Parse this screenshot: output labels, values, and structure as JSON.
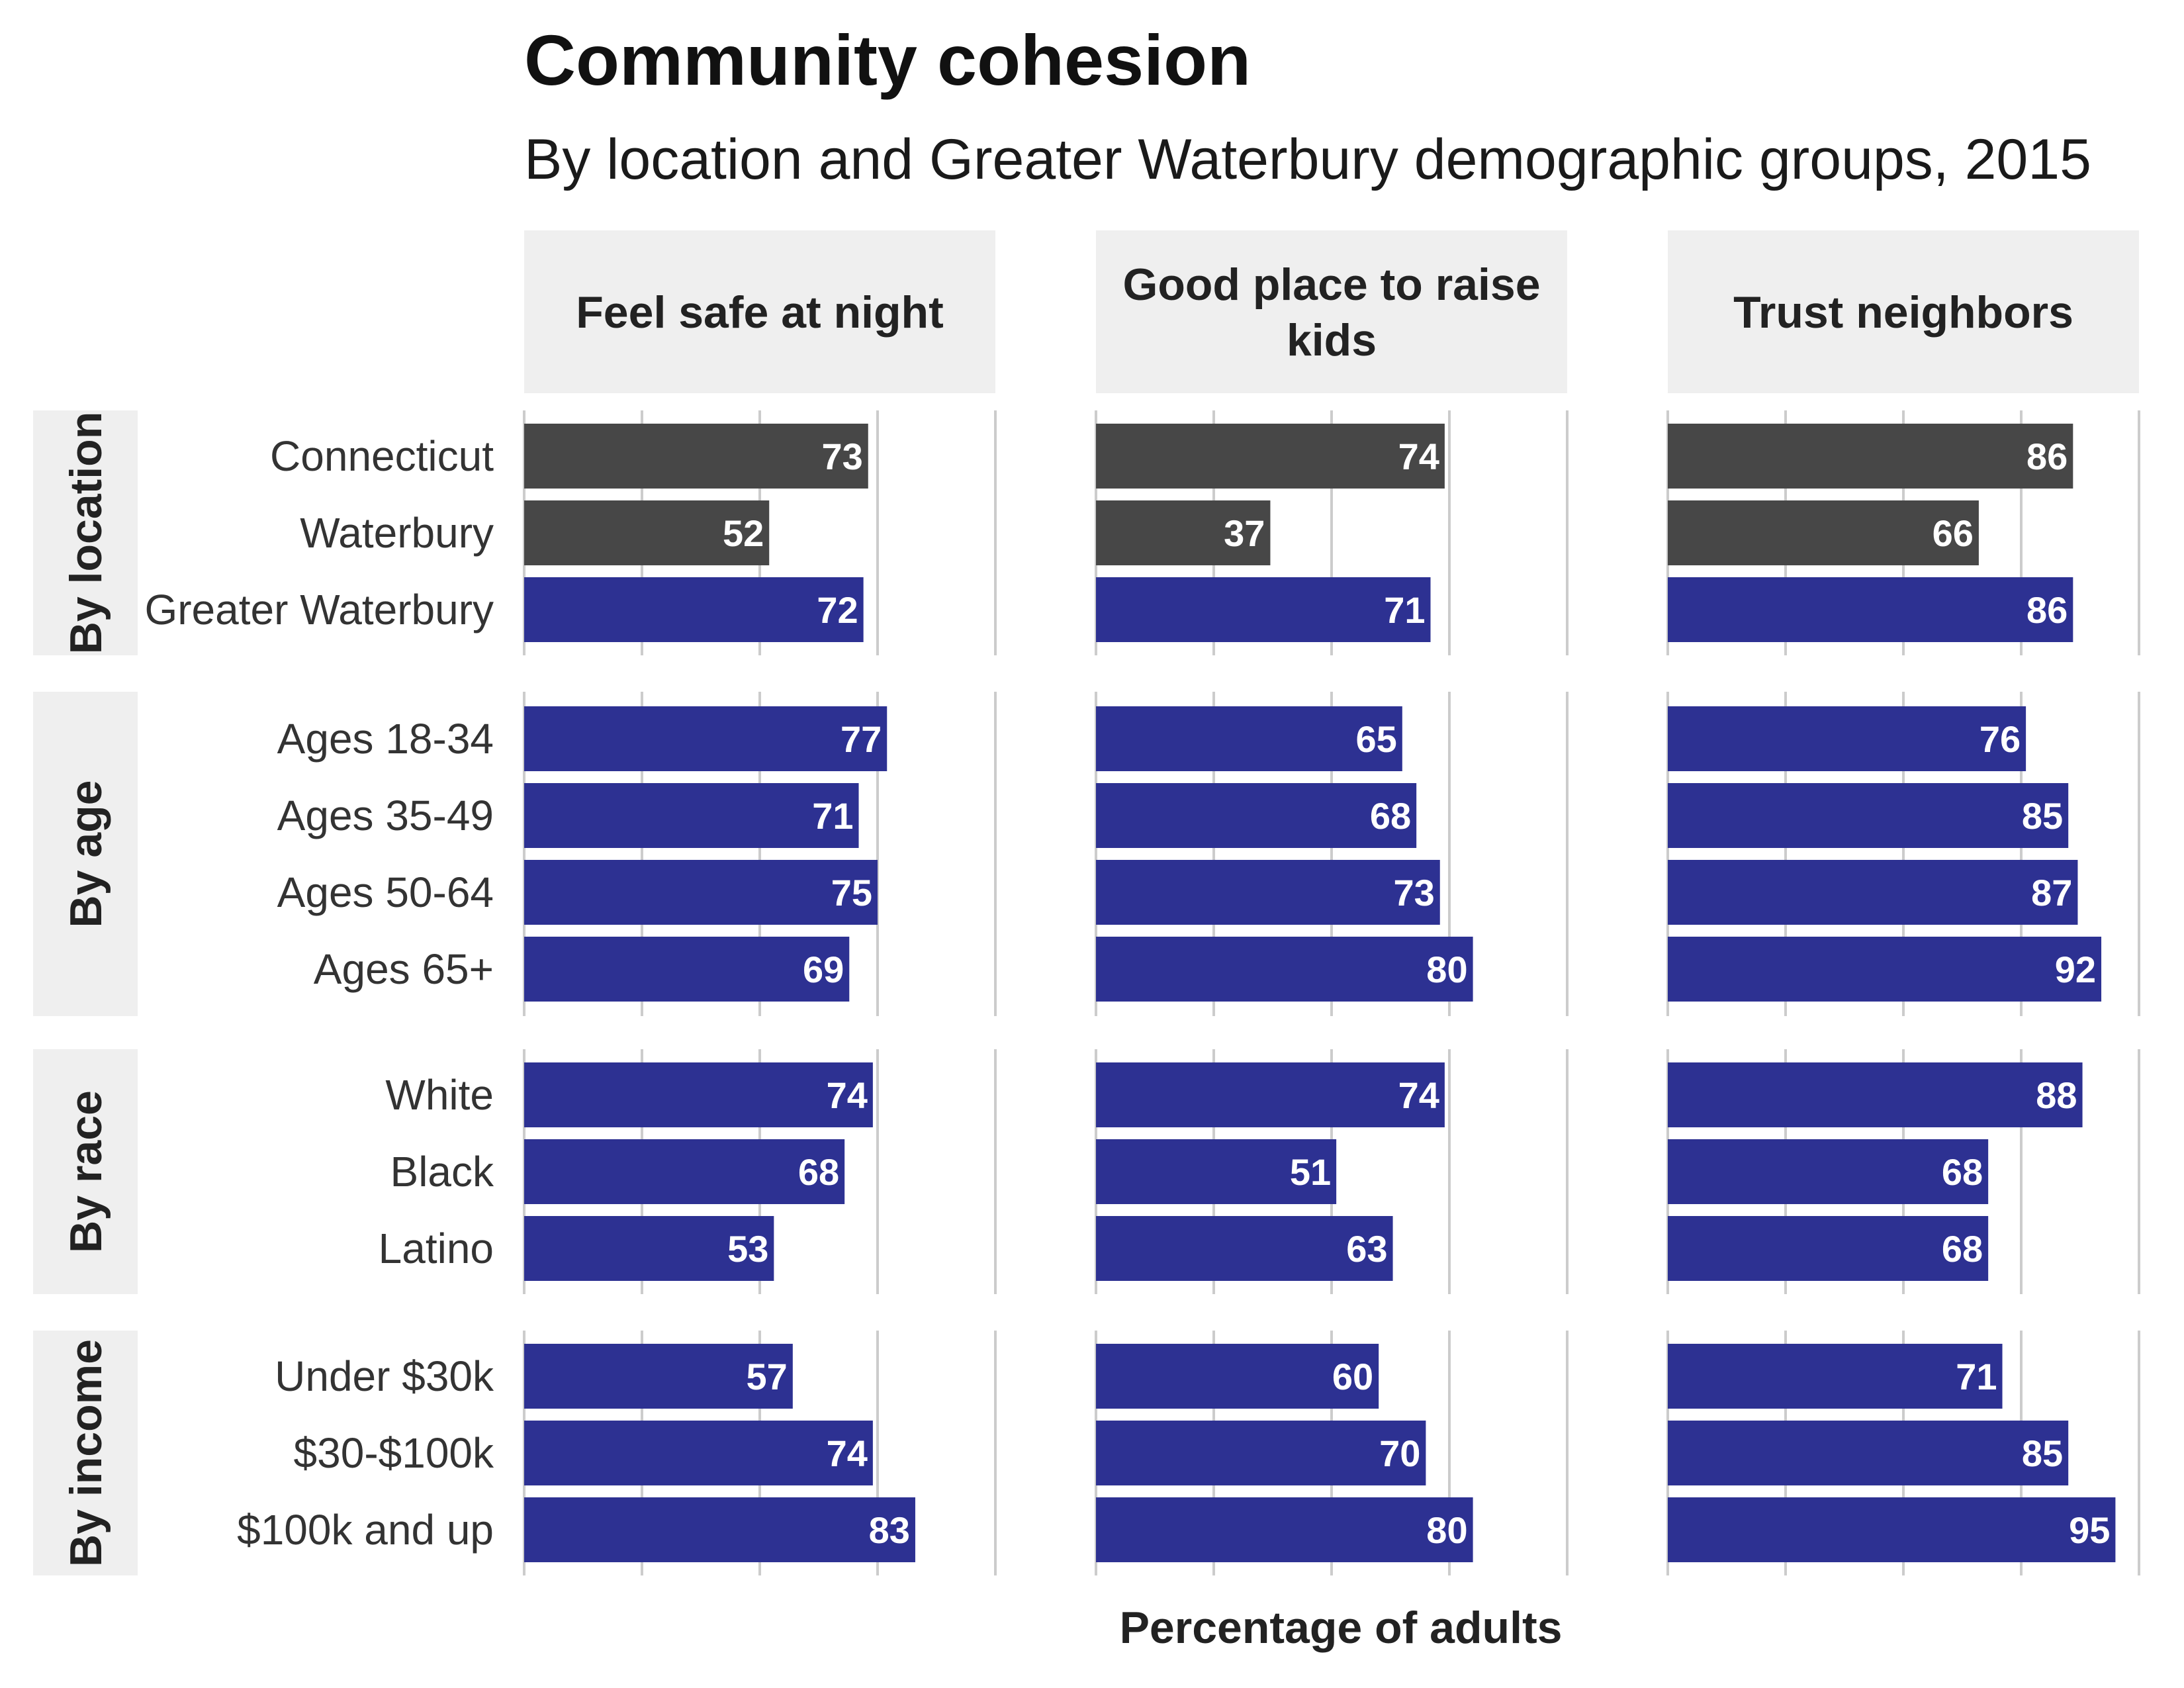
{
  "chart_data": {
    "type": "bar",
    "orientation": "horizontal",
    "title": "Community cohesion",
    "subtitle": "By location and Greater Waterbury demographic groups, 2015",
    "xlabel": "Percentage of adults",
    "xlim": [
      0,
      100
    ],
    "grid": true,
    "columns": [
      "Feel safe at night",
      "Good place to raise kids",
      "Trust neighbors"
    ],
    "colors": {
      "location": "#474747",
      "greater_waterbury": "#2d3192"
    },
    "groups": [
      {
        "name": "By location",
        "categories": [
          "Connecticut",
          "Waterbury",
          "Greater Waterbury"
        ],
        "highlight": [
          false,
          false,
          true
        ],
        "values": [
          [
            73,
            74,
            86
          ],
          [
            52,
            37,
            66
          ],
          [
            72,
            71,
            86
          ]
        ]
      },
      {
        "name": "By age",
        "categories": [
          "Ages 18-34",
          "Ages 35-49",
          "Ages 50-64",
          "Ages 65+"
        ],
        "highlight": [
          true,
          true,
          true,
          true
        ],
        "values": [
          [
            77,
            65,
            76
          ],
          [
            71,
            68,
            85
          ],
          [
            75,
            73,
            87
          ],
          [
            69,
            80,
            92
          ]
        ]
      },
      {
        "name": "By race",
        "categories": [
          "White",
          "Black",
          "Latino"
        ],
        "highlight": [
          true,
          true,
          true
        ],
        "values": [
          [
            74,
            74,
            88
          ],
          [
            68,
            51,
            68
          ],
          [
            53,
            63,
            68
          ]
        ]
      },
      {
        "name": "By income",
        "categories": [
          "Under $30k",
          "$30-$100k",
          "$100k and up"
        ],
        "highlight": [
          true,
          true,
          true
        ],
        "values": [
          [
            57,
            60,
            71
          ],
          [
            74,
            70,
            85
          ],
          [
            83,
            80,
            95
          ]
        ]
      }
    ]
  }
}
